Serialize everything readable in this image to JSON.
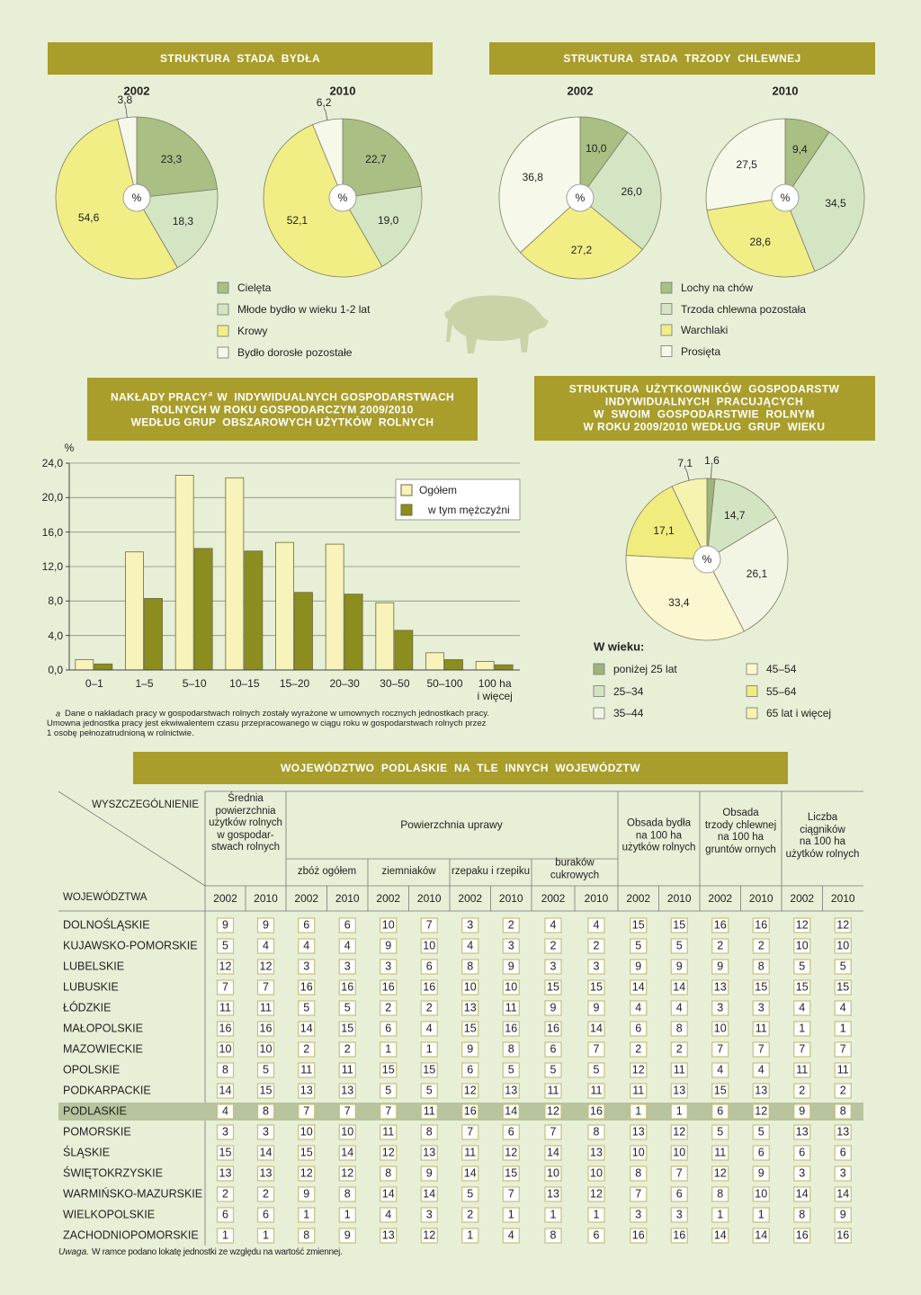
{
  "chart_data": [
    {
      "type": "pie",
      "title": "STRUKTURA  STADA  BYDŁA",
      "center_label": "%",
      "categories": [
        "Cielęta",
        "Młode bydło w wieku 1-2 lat",
        "Krowy",
        "Bydło dorosłe pozostałe"
      ],
      "colors": [
        "#a9bf84",
        "#d4e5c4",
        "#f2ee86",
        "#f6f8ea"
      ],
      "series": [
        {
          "name": "2002",
          "values": [
            23.3,
            18.3,
            54.6,
            3.8
          ],
          "value_labels": [
            "23,3",
            "18,3",
            "54,6",
            "3,8"
          ]
        },
        {
          "name": "2010",
          "values": [
            22.7,
            19.0,
            52.1,
            6.2
          ],
          "value_labels": [
            "22,7",
            "19,0",
            "52,1",
            "6,2"
          ]
        }
      ]
    },
    {
      "type": "pie",
      "title": "STRUKTURA  STADA  TRZODY  CHLEWNEJ",
      "center_label": "%",
      "categories": [
        "Lochy na chów",
        "Trzoda chlewna pozostała",
        "Warchlaki",
        "Prosięta"
      ],
      "colors": [
        "#a9bf84",
        "#d4e5c4",
        "#f2ee86",
        "#f6f8ea"
      ],
      "series": [
        {
          "name": "2002",
          "values": [
            10.0,
            26.0,
            27.2,
            36.8
          ],
          "value_labels": [
            "10,0",
            "26,0",
            "27,2",
            "36,8"
          ]
        },
        {
          "name": "2010",
          "values": [
            9.4,
            34.5,
            28.6,
            27.5
          ],
          "value_labels": [
            "9,4",
            "34,5",
            "28,6",
            "27,5"
          ]
        }
      ]
    },
    {
      "type": "bar",
      "title": "NAKŁADY PRACY",
      "title_sup": "a",
      "title_rest": "W  INDYWIDUALNYCH GOSPODARSTWACH\nROLNYCH W ROKU GOSPODARCZYM 2009/2010\nWEDŁUG GRUP  OBSZAROWYCH UŻYTKÓW  ROLNYCH",
      "y_label": "%",
      "categories": [
        "0–1",
        "1–5",
        "5–10",
        "10–15",
        "15–20",
        "20–30",
        "30–50",
        "50–100",
        "100 ha\ni więcej"
      ],
      "series": [
        {
          "name": "Ogółem",
          "color": "#f7f3bb",
          "values": [
            1.2,
            13.7,
            22.6,
            22.3,
            14.8,
            14.6,
            7.8,
            2.0,
            1.0
          ]
        },
        {
          "name": "w tym mężczyźni",
          "color": "#8b8d1f",
          "values": [
            0.7,
            8.3,
            14.1,
            13.8,
            9.0,
            8.8,
            4.6,
            1.2,
            0.6
          ]
        }
      ],
      "ylim": [
        0,
        24
      ],
      "yticks": [
        {
          "value": 0,
          "label": "0,0"
        },
        {
          "value": 4,
          "label": "4,0"
        },
        {
          "value": 8,
          "label": "8,0"
        },
        {
          "value": 12,
          "label": "12,0"
        },
        {
          "value": 16,
          "label": "16,0"
        },
        {
          "value": 20,
          "label": "20,0"
        },
        {
          "value": 24,
          "label": "24,0"
        }
      ],
      "grid": true,
      "legend": "top-right",
      "footnote_mark": "a",
      "footnote": "Dane o nakładach pracy w gospodarstwach rolnych zostały wyrażone w umownych rocznych jednostkach pracy.\nUmowna jednostka pracy jest ekwiwalentem czasu przepracowanego w ciągu roku w gospodarstwach rolnych przez\n1 osobę pełnozatrudnioną w rolnictwie."
    },
    {
      "type": "pie",
      "title": "STRUKTURA  UŻYTKOWNIKÓW  GOSPODARSTW\nINDYWIDUALNYCH  PRACUJĄCYCH\nW  SWOIM  GOSPODARSTWIE  ROLNYM\nW ROKU 2009/2010 WEDŁUG  GRUP  WIEKU",
      "center_label": "%",
      "legend_title": "W wieku:",
      "categories": [
        "poniżej 25 lat",
        "25–34",
        "35–44",
        "45–54",
        "55–64",
        "65 lat i więcej"
      ],
      "colors": [
        "#9db57a",
        "#d3e4c3",
        "#f3f5e4",
        "#fbf7d0",
        "#f1ec7e",
        "#f6f3b0"
      ],
      "series": [
        {
          "values": [
            1.6,
            14.7,
            26.1,
            33.4,
            17.1,
            7.1
          ],
          "value_labels": [
            "1,6",
            "14,7",
            "26,1",
            "33,4",
            "17,1",
            "7,1"
          ]
        }
      ]
    }
  ],
  "table": {
    "title": "WOJEWÓDZTWO  PODLASKIE  NA  TLE  INNYCH  WOJEWÓDZTW",
    "corner_top": "WYSZCZEGÓLNIENIE",
    "corner_bottom": "WOJEWÓDZTWA",
    "group_label": "Powierzchnia uprawy",
    "columns": [
      "Średnia\npowierzchnia\nużytków rolnych\nw gospodar-\nstwach rolnych",
      "zbóż ogółem",
      "ziemniaków",
      "rzepaku i rzepiku",
      "buraków\ncukrowych",
      "Obsada bydła\nna 100 ha\nużytków rolnych",
      "Obsada\ntrzody chlewnej\nna 100 ha\ngruntów ornych",
      "Liczba\nciągników\nna 100 ha\nużytków rolnych"
    ],
    "years": [
      "2002",
      "2010"
    ],
    "highlight": "PODLASKIE",
    "rows": [
      {
        "name": "DOLNOŚLĄSKIE",
        "values": [
          9,
          9,
          6,
          6,
          10,
          7,
          3,
          2,
          4,
          4,
          15,
          15,
          16,
          16,
          12,
          12
        ]
      },
      {
        "name": "KUJAWSKO-POMORSKIE",
        "values": [
          5,
          4,
          4,
          4,
          9,
          10,
          4,
          3,
          2,
          2,
          5,
          5,
          2,
          2,
          10,
          10
        ]
      },
      {
        "name": "LUBELSKIE",
        "values": [
          12,
          12,
          3,
          3,
          3,
          6,
          8,
          9,
          3,
          3,
          9,
          9,
          9,
          8,
          5,
          5
        ]
      },
      {
        "name": "LUBUSKIE",
        "values": [
          7,
          7,
          16,
          16,
          16,
          16,
          10,
          10,
          15,
          15,
          14,
          14,
          13,
          15,
          15,
          15
        ]
      },
      {
        "name": "ŁÓDZKIE",
        "values": [
          11,
          11,
          5,
          5,
          2,
          2,
          13,
          11,
          9,
          9,
          4,
          4,
          3,
          3,
          4,
          4
        ]
      },
      {
        "name": "MAŁOPOLSKIE",
        "values": [
          16,
          16,
          14,
          15,
          6,
          4,
          15,
          16,
          16,
          14,
          6,
          8,
          10,
          11,
          1,
          1
        ]
      },
      {
        "name": "MAZOWIECKIE",
        "values": [
          10,
          10,
          2,
          2,
          1,
          1,
          9,
          8,
          6,
          7,
          2,
          2,
          7,
          7,
          7,
          7
        ]
      },
      {
        "name": "OPOLSKIE",
        "values": [
          8,
          5,
          11,
          11,
          15,
          15,
          6,
          5,
          5,
          5,
          12,
          11,
          4,
          4,
          11,
          11
        ]
      },
      {
        "name": "PODKARPACKIE",
        "values": [
          14,
          15,
          13,
          13,
          5,
          5,
          12,
          13,
          11,
          11,
          11,
          13,
          15,
          13,
          2,
          2
        ]
      },
      {
        "name": "PODLASKIE",
        "values": [
          4,
          8,
          7,
          7,
          7,
          11,
          16,
          14,
          12,
          16,
          1,
          1,
          6,
          12,
          9,
          8
        ]
      },
      {
        "name": "POMORSKIE",
        "values": [
          3,
          3,
          10,
          10,
          11,
          8,
          7,
          6,
          7,
          8,
          13,
          12,
          5,
          5,
          13,
          13
        ]
      },
      {
        "name": "ŚLĄSKIE",
        "values": [
          15,
          14,
          15,
          14,
          12,
          13,
          11,
          12,
          14,
          13,
          10,
          10,
          11,
          6,
          6,
          6
        ]
      },
      {
        "name": "ŚWIĘTOKRZYSKIE",
        "values": [
          13,
          13,
          12,
          12,
          8,
          9,
          14,
          15,
          10,
          10,
          8,
          7,
          12,
          9,
          3,
          3
        ]
      },
      {
        "name": "WARMIŃSKO-MAZURSKIE",
        "values": [
          2,
          2,
          9,
          8,
          14,
          14,
          5,
          7,
          13,
          12,
          7,
          6,
          8,
          10,
          14,
          14
        ]
      },
      {
        "name": "WIELKOPOLSKIE",
        "values": [
          6,
          6,
          1,
          1,
          4,
          3,
          2,
          1,
          1,
          1,
          3,
          3,
          1,
          1,
          8,
          9
        ]
      },
      {
        "name": "ZACHODNIOPOMORSKIE",
        "values": [
          1,
          1,
          8,
          9,
          13,
          12,
          1,
          4,
          8,
          6,
          16,
          16,
          14,
          14,
          16,
          16
        ]
      }
    ],
    "note_label": "Uwaga.",
    "note": "W ramce podano lokatę jednostki ze względu na wartość zmiennej."
  }
}
